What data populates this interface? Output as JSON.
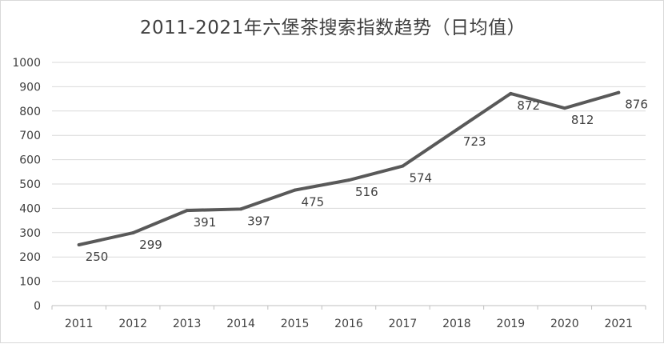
{
  "chart_data": {
    "type": "line",
    "title": "2011-2021年六堡茶搜索指数趋势（日均值）",
    "xlabel": "",
    "ylabel": "",
    "categories": [
      "2011",
      "2012",
      "2013",
      "2014",
      "2015",
      "2016",
      "2017",
      "2018",
      "2019",
      "2020",
      "2021"
    ],
    "series": [
      {
        "values": [
          250,
          299,
          391,
          397,
          475,
          516,
          574,
          723,
          872,
          812,
          876
        ]
      }
    ],
    "ylim": [
      0,
      1000
    ],
    "yticks": [
      0,
      100,
      200,
      300,
      400,
      500,
      600,
      700,
      800,
      900,
      1000
    ],
    "grid": true,
    "legend": "none",
    "colors": {
      "line": "#595959",
      "grid": "#d9d9d9",
      "axis": "#bfbfbf",
      "text": "#404040"
    }
  }
}
